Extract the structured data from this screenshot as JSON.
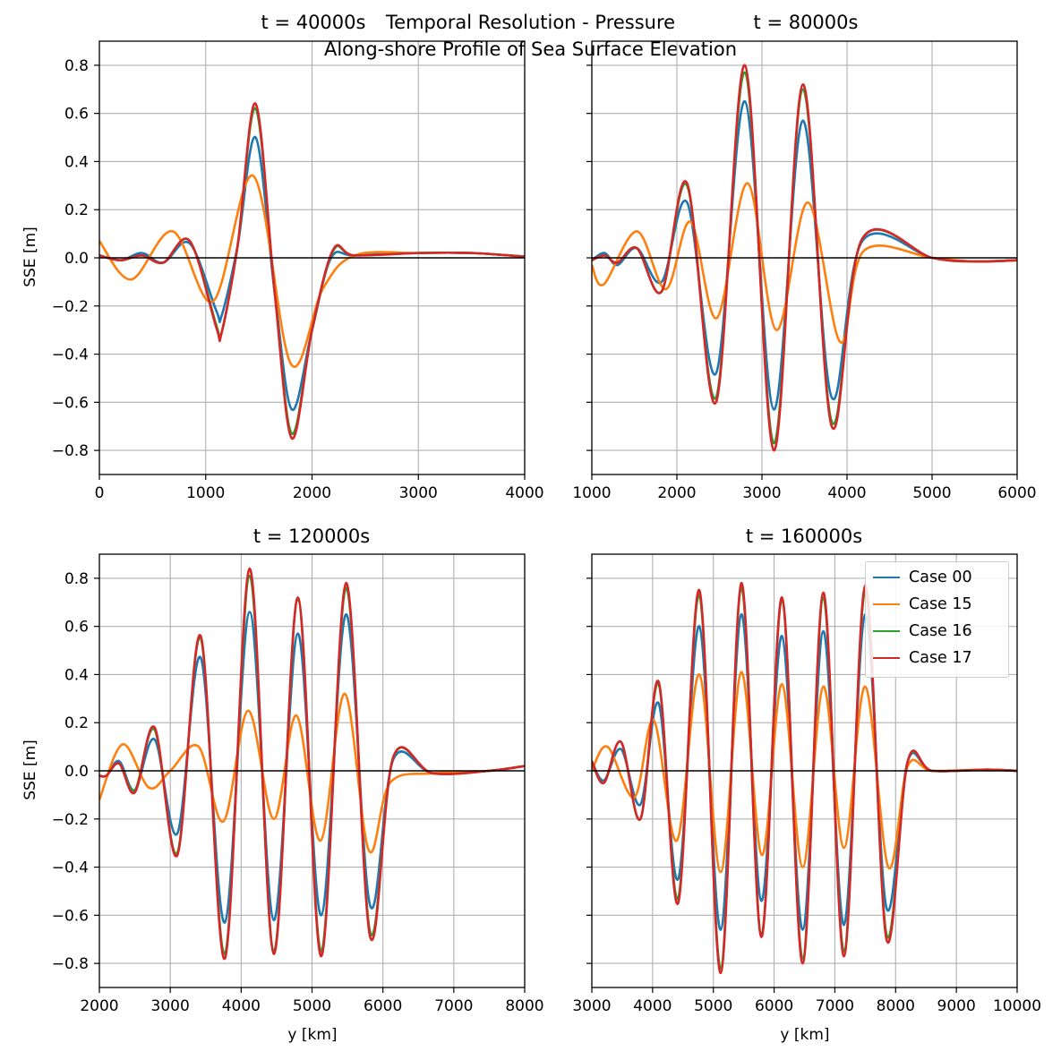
{
  "suptitle": {
    "line1": "Temporal Resolution - Pressure",
    "line2": "Along-shore Profile of Sea Surface Elevation"
  },
  "colors": {
    "Case 00": "#1f77b4",
    "Case 15": "#ff7f0e",
    "Case 16": "#2ca02c",
    "Case 17": "#d62728"
  },
  "legend": [
    "Case 00",
    "Case 15",
    "Case 16",
    "Case 17"
  ],
  "chart_data": [
    {
      "type": "line",
      "title": "t = 40000s",
      "xlabel": "",
      "ylabel": "SSE [m]",
      "xlim": [
        0,
        4000
      ],
      "ylim": [
        -0.9,
        0.9
      ],
      "xticks": [
        0,
        1000,
        2000,
        3000,
        4000
      ],
      "yticks": [
        -0.8,
        -0.6,
        -0.4,
        -0.2,
        0.0,
        0.2,
        0.4,
        0.6,
        0.8
      ],
      "grid": true,
      "zero_line": true,
      "series": [
        {
          "name": "Case 00",
          "x": [
            0,
            200,
            400,
            600,
            850,
            1100,
            1150,
            1300,
            1470,
            1650,
            1810,
            2000,
            2180,
            2400,
            3000,
            3500,
            4000
          ],
          "values": [
            0.01,
            -0.01,
            0.02,
            -0.02,
            0.06,
            -0.22,
            -0.24,
            0.05,
            0.5,
            -0.15,
            -0.63,
            -0.3,
            0.0,
            0.01,
            0.02,
            0.02,
            0.005
          ]
        },
        {
          "name": "Case 15",
          "x": [
            0,
            300,
            690,
            1070,
            1450,
            1800,
            2100,
            2400,
            3000,
            3500,
            4000
          ],
          "values": [
            0.07,
            -0.09,
            0.11,
            -0.18,
            0.34,
            -0.44,
            -0.13,
            0.01,
            0.02,
            0.02,
            0.005
          ]
        },
        {
          "name": "Case 16",
          "x": [
            0,
            200,
            400,
            600,
            850,
            1100,
            1150,
            1300,
            1470,
            1650,
            1810,
            2000,
            2200,
            2400,
            3000,
            3500,
            4000
          ],
          "values": [
            0.01,
            -0.01,
            0.01,
            -0.02,
            0.07,
            -0.28,
            -0.31,
            0.05,
            0.62,
            -0.15,
            -0.73,
            -0.3,
            0.03,
            0.01,
            0.02,
            0.02,
            0.005
          ]
        },
        {
          "name": "Case 17",
          "x": [
            0,
            200,
            400,
            600,
            850,
            1100,
            1150,
            1300,
            1470,
            1650,
            1810,
            2000,
            2200,
            2400,
            3000,
            3500,
            4000
          ],
          "values": [
            0.01,
            -0.01,
            0.01,
            -0.02,
            0.07,
            -0.29,
            -0.31,
            0.05,
            0.64,
            -0.15,
            -0.75,
            -0.3,
            0.035,
            0.01,
            0.02,
            0.02,
            0.005
          ]
        }
      ]
    },
    {
      "type": "line",
      "title": "t = 80000s",
      "xlabel": "",
      "ylabel": "",
      "xlim": [
        1000,
        6000
      ],
      "ylim": [
        -0.9,
        0.9
      ],
      "xticks": [
        1000,
        2000,
        3000,
        4000,
        5000,
        6000
      ],
      "yticks": [
        -0.8,
        -0.6,
        -0.4,
        -0.2,
        0.0,
        0.2,
        0.4,
        0.6,
        0.8
      ],
      "grid": true,
      "zero_line": true,
      "series": [
        {
          "name": "Case 00",
          "x": [
            1000,
            1150,
            1300,
            1530,
            1820,
            2120,
            2460,
            2800,
            3140,
            3480,
            3820,
            4180,
            5000,
            5500,
            6000
          ],
          "values": [
            -0.01,
            0.02,
            -0.03,
            0.04,
            -0.1,
            0.23,
            -0.48,
            0.65,
            -0.63,
            0.57,
            -0.58,
            0.07,
            0.0,
            -0.015,
            -0.01
          ]
        },
        {
          "name": "Case 15",
          "x": [
            1000,
            1140,
            1530,
            1870,
            2160,
            2470,
            2830,
            3170,
            3540,
            3920,
            4200,
            5000,
            5500,
            6000
          ],
          "values": [
            -0.03,
            -0.11,
            0.11,
            -0.13,
            0.15,
            -0.25,
            0.31,
            -0.3,
            0.23,
            -0.35,
            0.03,
            0.0,
            -0.015,
            -0.01
          ]
        },
        {
          "name": "Case 16",
          "x": [
            1000,
            1150,
            1300,
            1530,
            1820,
            2120,
            2460,
            2800,
            3140,
            3480,
            3820,
            4180,
            5000,
            5500,
            6000
          ],
          "values": [
            -0.01,
            0.01,
            -0.02,
            0.04,
            -0.14,
            0.3,
            -0.58,
            0.77,
            -0.77,
            0.7,
            -0.68,
            0.08,
            0.0,
            -0.015,
            -0.01
          ]
        },
        {
          "name": "Case 17",
          "x": [
            1000,
            1150,
            1300,
            1530,
            1820,
            2120,
            2460,
            2800,
            3140,
            3480,
            3820,
            4180,
            5000,
            5500,
            6000
          ],
          "values": [
            -0.01,
            0.01,
            -0.02,
            0.04,
            -0.14,
            0.31,
            -0.6,
            0.8,
            -0.8,
            0.72,
            -0.7,
            0.08,
            0.0,
            -0.015,
            -0.01
          ]
        }
      ]
    },
    {
      "type": "line",
      "title": "t = 120000s",
      "xlabel": "y [km]",
      "ylabel": "SSE [m]",
      "xlim": [
        2000,
        8000
      ],
      "ylim": [
        -0.9,
        0.9
      ],
      "xticks": [
        2000,
        3000,
        4000,
        5000,
        6000,
        7000,
        8000
      ],
      "yticks": [
        -0.8,
        -0.6,
        -0.4,
        -0.2,
        0.0,
        0.2,
        0.4,
        0.6,
        0.8
      ],
      "grid": true,
      "zero_line": true,
      "series": [
        {
          "name": "Case 00",
          "x": [
            2000,
            2100,
            2280,
            2500,
            2780,
            3100,
            3430,
            3770,
            4120,
            4460,
            4800,
            5130,
            5480,
            5820,
            6150,
            6700,
            7500,
            8000
          ],
          "values": [
            -0.02,
            -0.02,
            0.04,
            -0.08,
            0.13,
            -0.26,
            0.47,
            -0.63,
            0.66,
            -0.62,
            0.57,
            -0.6,
            0.65,
            -0.56,
            0.05,
            -0.01,
            0.0,
            0.02
          ]
        },
        {
          "name": "Case 15",
          "x": [
            2000,
            2330,
            2700,
            3000,
            3400,
            3750,
            4100,
            4460,
            4780,
            5120,
            5460,
            5800,
            6100,
            6700,
            7500,
            8000
          ],
          "values": [
            -0.12,
            0.11,
            -0.07,
            0.0,
            0.1,
            -0.21,
            0.25,
            -0.2,
            0.23,
            -0.29,
            0.32,
            -0.33,
            -0.05,
            -0.01,
            0.0,
            0.02
          ]
        },
        {
          "name": "Case 16",
          "x": [
            2000,
            2100,
            2280,
            2500,
            2780,
            3100,
            3430,
            3770,
            4120,
            4460,
            4800,
            5130,
            5480,
            5820,
            6150,
            6700,
            7500,
            8000
          ],
          "values": [
            -0.02,
            -0.02,
            0.03,
            -0.08,
            0.17,
            -0.34,
            0.55,
            -0.76,
            0.81,
            -0.75,
            0.71,
            -0.75,
            0.76,
            -0.67,
            0.06,
            -0.01,
            0.0,
            0.02
          ]
        },
        {
          "name": "Case 17",
          "x": [
            2000,
            2100,
            2280,
            2500,
            2780,
            3100,
            3430,
            3770,
            4120,
            4460,
            4800,
            5130,
            5480,
            5820,
            6150,
            6700,
            7500,
            8000
          ],
          "values": [
            -0.02,
            -0.02,
            0.03,
            -0.09,
            0.18,
            -0.35,
            0.56,
            -0.78,
            0.84,
            -0.76,
            0.72,
            -0.77,
            0.78,
            -0.69,
            0.06,
            -0.01,
            0.0,
            0.02
          ]
        }
      ]
    },
    {
      "type": "line",
      "title": "t = 160000s",
      "xlabel": "y [km]",
      "ylabel": "",
      "xlim": [
        3000,
        10000
      ],
      "ylim": [
        -0.9,
        0.9
      ],
      "xticks": [
        3000,
        4000,
        5000,
        6000,
        7000,
        8000,
        9000,
        10000
      ],
      "yticks": [
        -0.8,
        -0.6,
        -0.4,
        -0.2,
        0.0,
        0.2,
        0.4,
        0.6,
        0.8
      ],
      "grid": true,
      "zero_line": true,
      "series": [
        {
          "name": "Case 00",
          "x": [
            3000,
            3200,
            3480,
            3800,
            4100,
            4420,
            4770,
            5120,
            5460,
            5790,
            6130,
            6470,
            6810,
            7150,
            7500,
            7850,
            8200,
            8600,
            9500,
            10000
          ],
          "values": [
            0.04,
            -0.04,
            0.09,
            -0.14,
            0.28,
            -0.45,
            0.6,
            -0.66,
            0.65,
            -0.54,
            0.56,
            -0.66,
            0.58,
            -0.64,
            0.65,
            -0.57,
            0.04,
            0.0,
            0.005,
            0.0
          ]
        },
        {
          "name": "Case 15",
          "x": [
            3000,
            3260,
            3700,
            4020,
            4400,
            4770,
            5120,
            5460,
            5800,
            6130,
            6470,
            6810,
            7150,
            7500,
            7880,
            8200,
            8600,
            9500,
            10000
          ],
          "values": [
            0.0,
            0.1,
            -0.11,
            0.21,
            -0.29,
            0.4,
            -0.42,
            0.41,
            -0.35,
            0.36,
            -0.4,
            0.35,
            -0.32,
            0.35,
            -0.4,
            0.02,
            0.0,
            0.005,
            0.0
          ]
        },
        {
          "name": "Case 16",
          "x": [
            3000,
            3200,
            3480,
            3800,
            4100,
            4420,
            4770,
            5120,
            5460,
            5790,
            6130,
            6470,
            6810,
            7150,
            7500,
            7850,
            8200,
            8600,
            9500,
            10000
          ],
          "values": [
            0.04,
            -0.05,
            0.12,
            -0.2,
            0.36,
            -0.53,
            0.73,
            -0.82,
            0.76,
            -0.68,
            0.71,
            -0.78,
            0.72,
            -0.75,
            0.75,
            -0.68,
            0.04,
            0.0,
            0.005,
            0.0
          ]
        },
        {
          "name": "Case 17",
          "x": [
            3000,
            3200,
            3480,
            3800,
            4100,
            4420,
            4770,
            5120,
            5460,
            5790,
            6130,
            6470,
            6810,
            7150,
            7500,
            7850,
            8200,
            8600,
            9500,
            10000
          ],
          "values": [
            0.04,
            -0.05,
            0.12,
            -0.2,
            0.37,
            -0.55,
            0.75,
            -0.84,
            0.78,
            -0.69,
            0.72,
            -0.8,
            0.74,
            -0.77,
            0.77,
            -0.7,
            0.04,
            0.0,
            0.005,
            0.0
          ]
        }
      ]
    }
  ]
}
